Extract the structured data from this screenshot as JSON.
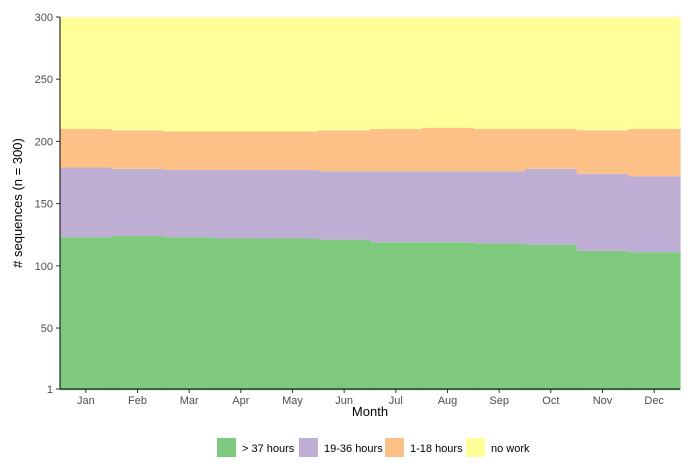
{
  "chart_data": {
    "type": "area",
    "subtype": "stacked state distribution (sequence plot)",
    "xlabel": "Month",
    "ylabel": "# sequences (n = 300)",
    "categories": [
      "Jan",
      "Feb",
      "Mar",
      "Apr",
      "May",
      "Jun",
      "Jul",
      "Aug",
      "Sep",
      "Oct",
      "Nov",
      "Dec"
    ],
    "ylim": [
      1,
      300
    ],
    "yticks": [
      1,
      50,
      100,
      150,
      200,
      250,
      300
    ],
    "grid": false,
    "legend_position": "bottom",
    "series": [
      {
        "name": "> 37 hours",
        "color": "#7FC97F",
        "values": [
          123,
          124,
          123,
          122,
          122,
          121,
          119,
          119,
          118,
          117,
          112,
          111
        ]
      },
      {
        "name": "19-36 hours",
        "color": "#BEAED4",
        "values": [
          56,
          54,
          54,
          55,
          55,
          55,
          57,
          57,
          58,
          61,
          62,
          61
        ]
      },
      {
        "name": "1-18 hours",
        "color": "#FDC086",
        "values": [
          31,
          31,
          31,
          31,
          31,
          33,
          34,
          35,
          34,
          32,
          35,
          38
        ]
      },
      {
        "name": "no work",
        "color": "#FFFF99",
        "values": [
          90,
          91,
          92,
          92,
          92,
          91,
          90,
          89,
          90,
          90,
          91,
          90
        ]
      }
    ]
  }
}
